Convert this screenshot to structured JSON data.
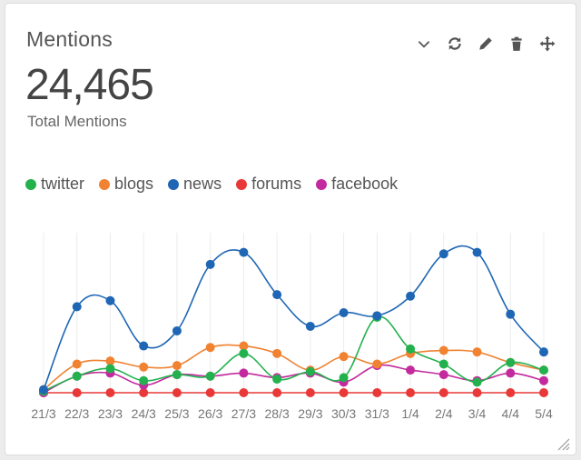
{
  "widget": {
    "title": "Mentions",
    "total_value": "24,465",
    "total_label": "Total Mentions",
    "toolbar": [
      "chevron-down-icon",
      "refresh-icon",
      "pencil-icon",
      "trash-icon",
      "move-icon"
    ]
  },
  "colors": {
    "twitter": "#23b14d",
    "blogs": "#f08232",
    "news": "#1f67b5",
    "forums": "#e83838",
    "facebook": "#c32a9e"
  },
  "legend": [
    {
      "label": "twitter",
      "color": "#23b14d"
    },
    {
      "label": "blogs",
      "color": "#f08232"
    },
    {
      "label": "news",
      "color": "#1f67b5"
    },
    {
      "label": "forums",
      "color": "#e83838"
    },
    {
      "label": "facebook",
      "color": "#c32a9e"
    }
  ],
  "chart_data": {
    "type": "line",
    "categories": [
      "21/3",
      "22/3",
      "23/3",
      "24/3",
      "25/3",
      "26/3",
      "27/3",
      "28/3",
      "29/3",
      "30/3",
      "31/3",
      "1/4",
      "2/4",
      "3/4",
      "4/4",
      "5/4"
    ],
    "ylim": [
      0,
      100
    ],
    "grid": "vertical",
    "series": [
      {
        "name": "twitter",
        "color": "#23b14d",
        "values": [
          1,
          11,
          16,
          8,
          12,
          11,
          26,
          9,
          14,
          10,
          50,
          29,
          19,
          7,
          20,
          15
        ]
      },
      {
        "name": "blogs",
        "color": "#f08232",
        "values": [
          2,
          19,
          21,
          17,
          18,
          30,
          31,
          26,
          15,
          24,
          19,
          26,
          28,
          27,
          20,
          15
        ]
      },
      {
        "name": "news",
        "color": "#1f67b5",
        "values": [
          2,
          57,
          61,
          31,
          41,
          85,
          93,
          65,
          44,
          53,
          51,
          64,
          92,
          93,
          52,
          27
        ]
      },
      {
        "name": "forums",
        "color": "#e83838",
        "values": [
          0,
          0,
          0,
          0,
          0,
          0,
          0,
          0,
          0,
          0,
          0,
          0,
          0,
          0,
          0,
          0
        ]
      },
      {
        "name": "facebook",
        "color": "#c32a9e",
        "values": [
          0,
          11,
          13,
          5,
          12,
          11,
          13,
          10,
          13,
          7,
          18,
          15,
          12,
          8,
          13,
          8
        ]
      }
    ]
  }
}
